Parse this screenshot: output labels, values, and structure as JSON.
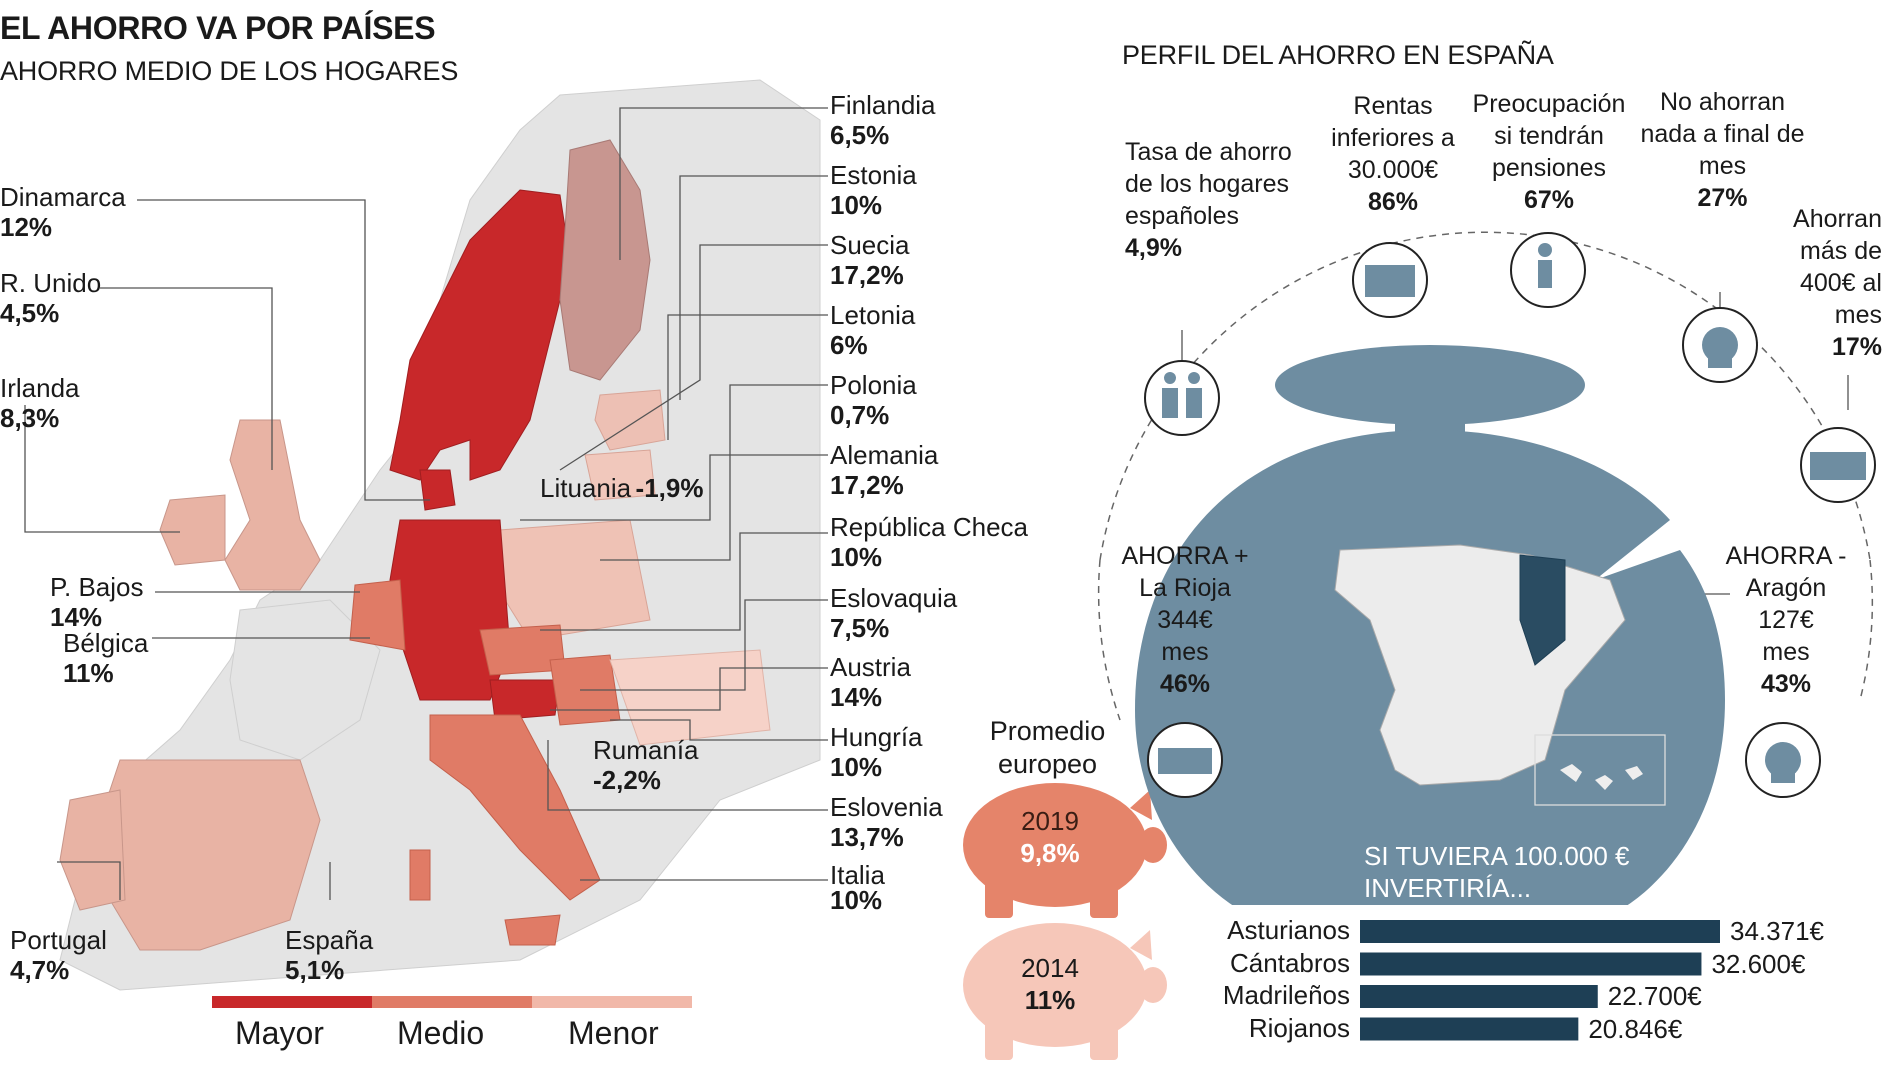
{
  "header": {
    "title": "EL AHORRO VA POR PAÍSES",
    "subtitle": "AHORRO MEDIO DE LOS HOGARES"
  },
  "countries": [
    {
      "key": "finlandia",
      "name": "Finlandia",
      "value": "6,5%"
    },
    {
      "key": "estonia",
      "name": "Estonia",
      "value": "10%"
    },
    {
      "key": "suecia",
      "name": "Suecia",
      "value": "17,2%"
    },
    {
      "key": "letonia",
      "name": "Letonia",
      "value": "6%"
    },
    {
      "key": "polonia",
      "name": "Polonia",
      "value": "0,7%"
    },
    {
      "key": "alemania",
      "name": "Alemania",
      "value": "17,2%"
    },
    {
      "key": "republica_checa",
      "name": "República Checa",
      "value": "10%"
    },
    {
      "key": "eslovaquia",
      "name": "Eslovaquia",
      "value": "7,5%"
    },
    {
      "key": "austria",
      "name": "Austria",
      "value": "14%"
    },
    {
      "key": "hungria",
      "name": "Hungría",
      "value": "10%"
    },
    {
      "key": "eslovenia",
      "name": "Eslovenia",
      "value": "13,7%"
    },
    {
      "key": "italia",
      "name": "Italia",
      "value": "10%"
    },
    {
      "key": "dinamarca",
      "name": "Dinamarca",
      "value": "12%"
    },
    {
      "key": "reino_unido",
      "name": "R. Unido",
      "value": "4,5%"
    },
    {
      "key": "irlanda",
      "name": "Irlanda",
      "value": "8,3%"
    },
    {
      "key": "paises_bajos",
      "name": "P. Bajos",
      "value": "14%"
    },
    {
      "key": "belgica",
      "name": "Bélgica",
      "value": "11%"
    },
    {
      "key": "lituania",
      "name": "Lituania",
      "value": "-1,9%"
    },
    {
      "key": "rumania",
      "name": "Rumanía",
      "value": "-2,2%"
    },
    {
      "key": "portugal",
      "name": "Portugal",
      "value": "4,7%"
    },
    {
      "key": "espana",
      "name": "España",
      "value": "5,1%"
    }
  ],
  "legend": {
    "mayor": "Mayor",
    "medio": "Medio",
    "menor": "Menor",
    "colors": {
      "mayor": "#c8282a",
      "medio": "#e07b66",
      "menor": "#f1b8a9"
    }
  },
  "promedio": {
    "label": "Promedio europeo",
    "y2019": "2019",
    "v2019": "9,8%",
    "y2014": "2014",
    "v2014": "11%"
  },
  "perfil": {
    "title": "PERFIL DEL AHORRO EN ESPAÑA",
    "tasa": {
      "label": "Tasa de ahorro de los hogares españoles",
      "value": "4,9%"
    },
    "rentas": {
      "label": "Rentas inferiores a 30.000€",
      "value": "86%"
    },
    "preocupacion": {
      "label": "Preocupación si tendrán pensiones",
      "value": "67%"
    },
    "noahorran": {
      "label": "No ahorran nada a final de mes",
      "value": "27%"
    },
    "mas400": {
      "label": "Ahorran más de 400€ al mes",
      "value": "17%"
    },
    "ahorra_mas": {
      "head": "AHORRA +",
      "region": "La Rioja",
      "amount": "344€",
      "unit": "mes",
      "pct": "46%"
    },
    "ahorra_menos": {
      "head": "AHORRA -",
      "region": "Aragón",
      "amount": "127€",
      "unit": "mes",
      "pct": "43%"
    },
    "invertiria": "SI TUVIERA 100.000 € INVERTIRÍA..."
  },
  "chart_data": {
    "type": "bar",
    "orientation": "horizontal",
    "categories": [
      "Asturianos",
      "Cántabros",
      "Madrileños",
      "Riojanos"
    ],
    "values": [
      34371,
      32600,
      22700,
      20846
    ],
    "value_labels": [
      "34.371€",
      "32.600€",
      "22.700€",
      "20.846€"
    ],
    "color": "#1e3f55"
  }
}
